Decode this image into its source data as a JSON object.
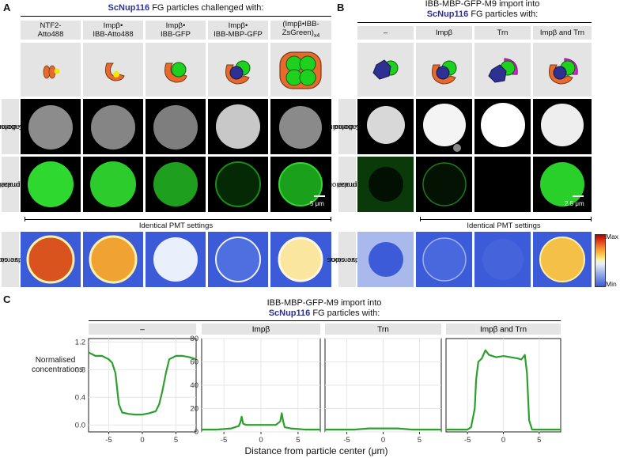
{
  "panel_a": {
    "letter": "A",
    "title_strain": "ScNup116",
    "title_rest": " FG particles challenged with:",
    "columns": [
      {
        "line1": "NTF2-",
        "line2": "Atto488",
        "sub": ""
      },
      {
        "line1": "Impβ•",
        "line2": "IBB-Atto488",
        "sub": ""
      },
      {
        "line1": "Impβ•",
        "line2": "IBB-GFP",
        "sub": ""
      },
      {
        "line1": "Impβ•",
        "line2": "IBB-MBP-GFP",
        "sub": ""
      },
      {
        "line1": "(Impβ•IBB-",
        "line2": "ZsGreen)",
        "sub": "x4"
      }
    ],
    "row_labels": {
      "fg": [
        "Labeled",
        "FG domain"
      ],
      "perm": [
        "Permeation",
        "probe"
      ],
      "false": [
        "False color",
        "conversions"
      ]
    },
    "scale_bar": "5 μm",
    "pmt_note": "Identical PMT settings"
  },
  "panel_b": {
    "letter": "B",
    "title_line1": "IBB-MBP-GFP-M9 import into",
    "title_strain": "ScNup116",
    "title_rest": " FG particles with:",
    "columns": [
      "–",
      "Impβ",
      "Trn",
      "Impβ and Trn"
    ],
    "row_labels": {
      "fg": [
        "Labeled",
        "FG domain"
      ],
      "perm": [
        "Permeation",
        "probe"
      ],
      "false": [
        "False color",
        "conversions"
      ]
    },
    "scale_bar": "2.5 μm",
    "pmt_note": "Identical PMT settings",
    "legend": {
      "max": "Max",
      "min": "Min"
    }
  },
  "panel_c": {
    "letter": "C",
    "title_line1": "IBB-MBP-GFP-M9 import into",
    "title_strain": "ScNup116",
    "title_rest": " FG particles with:",
    "ylabel_line1": "Normalised",
    "ylabel_line2": "concentrations",
    "xlabel": "Distance from particle center (μm)"
  },
  "chart_data": [
    {
      "type": "line",
      "facet": "–",
      "x": [
        -8,
        -7,
        -6,
        -5,
        -4.5,
        -4,
        -3.5,
        -3,
        -2,
        -1,
        0,
        1,
        2,
        2.5,
        3,
        3.5,
        4,
        5,
        6,
        7,
        8
      ],
      "series": [
        {
          "values": [
            1.05,
            1.0,
            1.0,
            0.95,
            0.9,
            0.75,
            0.3,
            0.18,
            0.16,
            0.15,
            0.15,
            0.17,
            0.2,
            0.3,
            0.5,
            0.75,
            0.95,
            1.0,
            1.0,
            0.98,
            0.95
          ]
        }
      ],
      "ylim": [
        -0.1,
        1.25
      ],
      "yticks": [
        "0.0",
        "0.4",
        "0.8",
        "1.2"
      ],
      "yticks_values": [
        0.0,
        0.4,
        0.8,
        1.2
      ],
      "xlim": [
        -8,
        8
      ],
      "xticks": [
        "-5",
        "0",
        "5"
      ],
      "xticks_values": [
        -5,
        0,
        5
      ],
      "color": "#2ca02c"
    },
    {
      "type": "line",
      "facet": "Impβ",
      "x": [
        -8,
        -6,
        -4,
        -3,
        -2.8,
        -2.6,
        -2.4,
        -2,
        -1,
        0,
        1,
        2,
        2.6,
        2.8,
        3.0,
        3.2,
        4,
        6,
        8
      ],
      "series": [
        {
          "values": [
            2,
            2,
            3,
            5,
            8,
            13,
            7,
            6,
            6,
            6,
            6,
            6,
            9,
            16,
            9,
            4,
            3,
            2,
            2
          ]
        }
      ],
      "ylim": [
        0,
        80
      ],
      "yticks": [
        "0",
        "20",
        "40",
        "60",
        "80"
      ],
      "yticks_values": [
        0,
        20,
        40,
        60,
        80
      ],
      "xlim": [
        -8,
        8
      ],
      "xticks": [
        "-5",
        "0",
        "5"
      ],
      "xticks_values": [
        -5,
        0,
        5
      ],
      "color": "#2ca02c"
    },
    {
      "type": "line",
      "facet": "Trn",
      "x": [
        -8,
        -4,
        -2,
        0,
        2,
        4,
        8
      ],
      "series": [
        {
          "values": [
            2,
            2,
            3,
            3,
            3,
            2,
            2
          ]
        }
      ],
      "ylim": [
        0,
        80
      ],
      "xlim": [
        -8,
        8
      ],
      "xticks": [
        "-5",
        "0",
        "5"
      ],
      "xticks_values": [
        -5,
        0,
        5
      ],
      "color": "#2ca02c"
    },
    {
      "type": "line",
      "facet": "Impβ and Trn",
      "x": [
        -8,
        -5,
        -4.5,
        -4,
        -3.8,
        -3.5,
        -3,
        -2.5,
        -2,
        -1,
        0,
        1,
        2,
        2.5,
        3,
        3.3,
        3.6,
        4,
        5,
        8
      ],
      "series": [
        {
          "values": [
            2,
            2,
            4,
            20,
            45,
            60,
            63,
            70,
            66,
            64,
            65,
            64,
            63,
            62,
            66,
            50,
            10,
            2,
            2,
            2
          ]
        }
      ],
      "ylim": [
        0,
        80
      ],
      "xlim": [
        -8,
        8
      ],
      "xticks": [
        "-5",
        "0",
        "5"
      ],
      "xticks_values": [
        -5,
        0,
        5
      ],
      "color": "#2ca02c"
    }
  ],
  "colors": {
    "green_series": "#2ca02c",
    "strain_blue": "#2e3192",
    "header_grey": "#e4e4e4",
    "heatmap_bg": "#3b5bd9"
  }
}
